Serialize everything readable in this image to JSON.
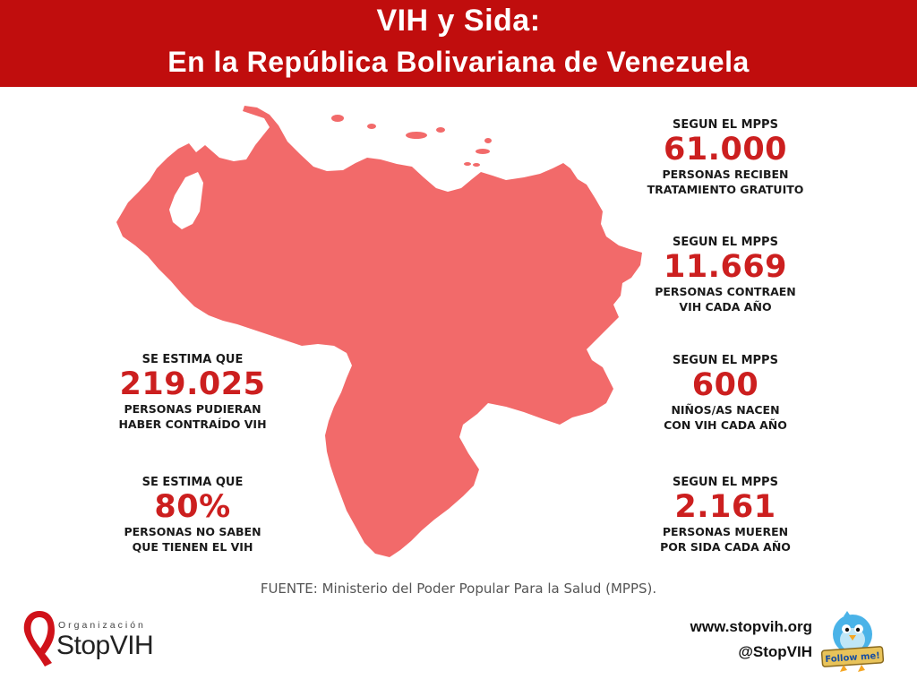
{
  "header": {
    "title_line1": "VIH y Sida:",
    "title_line2": "En la República Bolivariana de Venezuela",
    "background_color": "#c00d0d"
  },
  "map": {
    "icon": "venezuela-map",
    "color": "#f26a6a"
  },
  "stats": {
    "treatment": {
      "pre": "SEGUN EL MPPS",
      "number": "61.000",
      "desc_line1": "PERSONAS RECIBEN",
      "desc_line2": "TRATAMIENTO GRATUITO"
    },
    "new_infections": {
      "pre": "SEGUN EL MPPS",
      "number": "11.669",
      "desc_line1": "PERSONAS CONTRAEN",
      "desc_line2": "VIH CADA AÑO"
    },
    "children": {
      "pre": "SEGUN EL MPPS",
      "number": "600",
      "desc_line1": "NIÑOS/AS NACEN",
      "desc_line2": "CON VIH CADA AÑO"
    },
    "deaths": {
      "pre": "SEGUN EL MPPS",
      "number": "2.161",
      "desc_line1": "PERSONAS MUEREN",
      "desc_line2": "POR SIDA CADA AÑO"
    },
    "estimated": {
      "pre": "SE ESTIMA QUE",
      "number": "219.025",
      "desc_line1": "PERSONAS PUDIERAN",
      "desc_line2": "HABER CONTRAÍDO VIH"
    },
    "unaware": {
      "pre": "SE ESTIMA QUE",
      "number": "80%",
      "desc_line1": "PERSONAS NO SABEN",
      "desc_line2": "QUE TIENEN EL VIH"
    }
  },
  "source": "FUENTE: Ministerio del Poder Popular Para la Salud (MPPS).",
  "logo": {
    "icon": "red-ribbon-icon",
    "org_label": "Organización",
    "name": "StopVIH"
  },
  "contact": {
    "website": "www.stopvih.org",
    "twitter": "@StopVIH"
  },
  "follow_badge": {
    "icon": "twitter-bird-icon",
    "text": "Follow me!"
  },
  "colors": {
    "accent": "#cc1f1f",
    "map_fill": "#f26a6a",
    "header": "#c00d0d"
  }
}
